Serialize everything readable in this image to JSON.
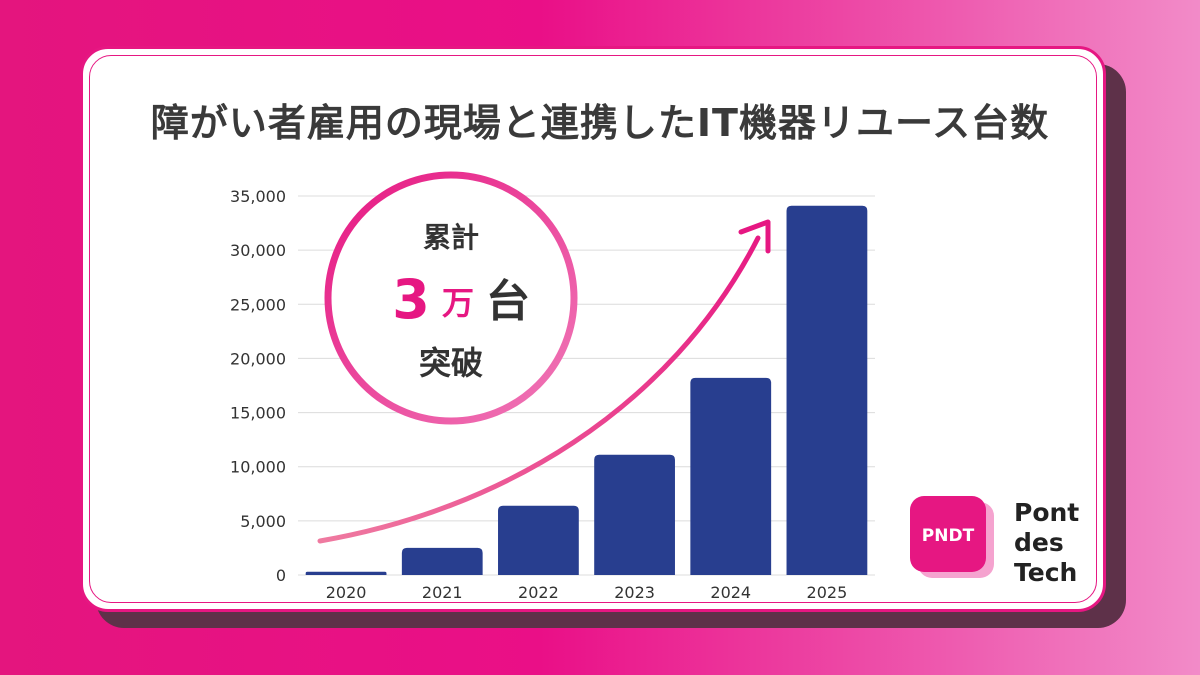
{
  "title": "障がい者雇用の現場と連携したIT機器リユース台数",
  "badge": {
    "line1": "累計",
    "number": "3",
    "unit_small": "万",
    "unit": "台",
    "line3": "突破"
  },
  "logo": {
    "mark": "PNDT",
    "line1": "Pont",
    "line2": "des",
    "line3": "Tech"
  },
  "colors": {
    "background": "#e4157e",
    "bar": "#283e8f",
    "accent": "#e61782",
    "arrow_start": "#ef7aa0",
    "arrow_end": "#e61782"
  },
  "chart_data": {
    "type": "bar",
    "categories": [
      "2020",
      "2021",
      "2022",
      "2023",
      "2024",
      "2025"
    ],
    "values": [
      300,
      2500,
      6400,
      11100,
      18200,
      34100
    ],
    "ylim": [
      0,
      35000
    ],
    "yticks": [
      0,
      5000,
      10000,
      15000,
      20000,
      25000,
      30000,
      35000
    ],
    "ytick_labels": [
      "0",
      "5,000",
      "10,000",
      "15,000",
      "20,000",
      "25,000",
      "30,000",
      "35,000"
    ],
    "grid": true,
    "legend": "none",
    "annotation": "upward trend arrow"
  }
}
